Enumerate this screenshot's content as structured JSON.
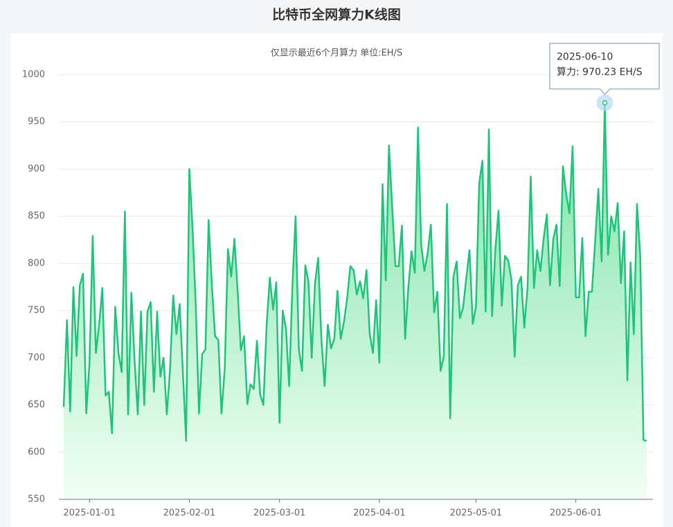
{
  "chart_data": {
    "type": "line",
    "title": "比特币全网算力K线图",
    "subtitle": "仅显示最近6个月算力 单位:EH/S",
    "color": "#1dc47a",
    "grid": true,
    "xlim": [
      "2024-12-24",
      "2025-06-23"
    ],
    "xticks": [
      "2025-01-01",
      "2025-02-01",
      "2025-03-01",
      "2025-04-01",
      "2025-05-01",
      "2025-06-01"
    ],
    "ylim": [
      550,
      1000
    ],
    "yticks": [
      550,
      600,
      650,
      700,
      750,
      800,
      850,
      900,
      950,
      1000
    ],
    "x": [
      "2024-12-24",
      "2024-12-25",
      "2024-12-26",
      "2024-12-27",
      "2024-12-28",
      "2024-12-29",
      "2024-12-30",
      "2024-12-31",
      "2025-01-01",
      "2025-01-02",
      "2025-01-03",
      "2025-01-04",
      "2025-01-05",
      "2025-01-06",
      "2025-01-07",
      "2025-01-08",
      "2025-01-09",
      "2025-01-10",
      "2025-01-11",
      "2025-01-12",
      "2025-01-13",
      "2025-01-14",
      "2025-01-15",
      "2025-01-16",
      "2025-01-17",
      "2025-01-18",
      "2025-01-19",
      "2025-01-20",
      "2025-01-21",
      "2025-01-22",
      "2025-01-23",
      "2025-01-24",
      "2025-01-25",
      "2025-01-26",
      "2025-01-27",
      "2025-01-28",
      "2025-01-29",
      "2025-01-30",
      "2025-01-31",
      "2025-02-01",
      "2025-02-02",
      "2025-02-03",
      "2025-02-04",
      "2025-02-05",
      "2025-02-06",
      "2025-02-07",
      "2025-02-08",
      "2025-02-09",
      "2025-02-10",
      "2025-02-11",
      "2025-02-12",
      "2025-02-13",
      "2025-02-14",
      "2025-02-15",
      "2025-02-16",
      "2025-02-17",
      "2025-02-18",
      "2025-02-19",
      "2025-02-20",
      "2025-02-21",
      "2025-02-22",
      "2025-02-23",
      "2025-02-24",
      "2025-02-25",
      "2025-02-26",
      "2025-02-27",
      "2025-02-28",
      "2025-03-01",
      "2025-03-02",
      "2025-03-03",
      "2025-03-04",
      "2025-03-05",
      "2025-03-06",
      "2025-03-07",
      "2025-03-08",
      "2025-03-09",
      "2025-03-10",
      "2025-03-11",
      "2025-03-12",
      "2025-03-13",
      "2025-03-14",
      "2025-03-15",
      "2025-03-16",
      "2025-03-17",
      "2025-03-18",
      "2025-03-19",
      "2025-03-20",
      "2025-03-21",
      "2025-03-22",
      "2025-03-23",
      "2025-03-24",
      "2025-03-25",
      "2025-03-26",
      "2025-03-27",
      "2025-03-28",
      "2025-03-29",
      "2025-03-30",
      "2025-03-31",
      "2025-04-01",
      "2025-04-02",
      "2025-04-03",
      "2025-04-04",
      "2025-04-05",
      "2025-04-06",
      "2025-04-07",
      "2025-04-08",
      "2025-04-09",
      "2025-04-10",
      "2025-04-11",
      "2025-04-12",
      "2025-04-13",
      "2025-04-14",
      "2025-04-15",
      "2025-04-16",
      "2025-04-17",
      "2025-04-18",
      "2025-04-19",
      "2025-04-20",
      "2025-04-21",
      "2025-04-22",
      "2025-04-23",
      "2025-04-24",
      "2025-04-25",
      "2025-04-26",
      "2025-04-27",
      "2025-04-28",
      "2025-04-29",
      "2025-04-30",
      "2025-05-01",
      "2025-05-02",
      "2025-05-03",
      "2025-05-04",
      "2025-05-05",
      "2025-05-06",
      "2025-05-07",
      "2025-05-08",
      "2025-05-09",
      "2025-05-10",
      "2025-05-11",
      "2025-05-12",
      "2025-05-13",
      "2025-05-14",
      "2025-05-15",
      "2025-05-16",
      "2025-05-17",
      "2025-05-18",
      "2025-05-19",
      "2025-05-20",
      "2025-05-21",
      "2025-05-22",
      "2025-05-23",
      "2025-05-24",
      "2025-05-25",
      "2025-05-26",
      "2025-05-27",
      "2025-05-28",
      "2025-05-29",
      "2025-05-30",
      "2025-05-31",
      "2025-06-01",
      "2025-06-02",
      "2025-06-03",
      "2025-06-04",
      "2025-06-05",
      "2025-06-06",
      "2025-06-07",
      "2025-06-08",
      "2025-06-09",
      "2025-06-10",
      "2025-06-11",
      "2025-06-12",
      "2025-06-13",
      "2025-06-14",
      "2025-06-15",
      "2025-06-16",
      "2025-06-17",
      "2025-06-18",
      "2025-06-19",
      "2025-06-20",
      "2025-06-21",
      "2025-06-22",
      "2025-06-23"
    ],
    "values": [
      648,
      740,
      643,
      775,
      702,
      777,
      789,
      641,
      694,
      829,
      705,
      735,
      774,
      660,
      664,
      620,
      754,
      705,
      685,
      855,
      640,
      769,
      698,
      640,
      749,
      650,
      749,
      759,
      664,
      749,
      680,
      700,
      640,
      687,
      766,
      725,
      757,
      685,
      612,
      900,
      837,
      757,
      641,
      704,
      709,
      846,
      777,
      723,
      719,
      641,
      689,
      815,
      786,
      826,
      771,
      708,
      723,
      651,
      672,
      667,
      718,
      661,
      650,
      735,
      785,
      751,
      780,
      631,
      750,
      731,
      670,
      776,
      850,
      709,
      686,
      798,
      781,
      700,
      779,
      806,
      720,
      670,
      735,
      710,
      720,
      771,
      720,
      738,
      763,
      797,
      793,
      767,
      781,
      763,
      793,
      726,
      705,
      761,
      695,
      884,
      782,
      925,
      859,
      797,
      797,
      840,
      720,
      775,
      813,
      790,
      944,
      819,
      792,
      811,
      841,
      748,
      770,
      686,
      701,
      863,
      636,
      786,
      802,
      742,
      753,
      785,
      814,
      736,
      754,
      885,
      909,
      749,
      942,
      744,
      815,
      856,
      755,
      808,
      803,
      783,
      701,
      777,
      786,
      732,
      774,
      892,
      774,
      814,
      792,
      826,
      852,
      777,
      826,
      841,
      776,
      903,
      874,
      853,
      924,
      764,
      764,
      827,
      723,
      770,
      770,
      824,
      879,
      802,
      970.23,
      809,
      850,
      834,
      864,
      779,
      834,
      676,
      801,
      725,
      863,
      808,
      613,
      612
    ],
    "tooltip": {
      "x": "2025-06-10",
      "label": "算力: 970.23 EH/S"
    }
  }
}
